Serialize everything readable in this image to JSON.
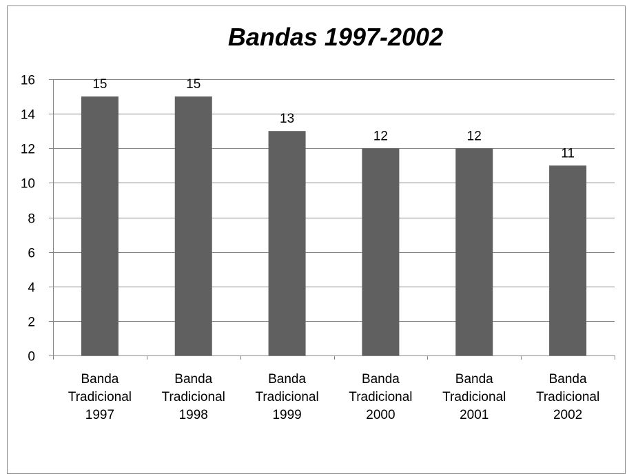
{
  "chart_data": {
    "type": "bar",
    "title": "Bandas 1997-2002",
    "categories": [
      [
        "Banda",
        "Tradicional",
        "1997"
      ],
      [
        "Banda",
        "Tradicional",
        "1998"
      ],
      [
        "Banda",
        "Tradicional",
        "1999"
      ],
      [
        "Banda",
        "Tradicional",
        "2000"
      ],
      [
        "Banda",
        "Tradicional",
        "2001"
      ],
      [
        "Banda",
        "Tradicional",
        "2002"
      ]
    ],
    "values": [
      15,
      15,
      13,
      12,
      12,
      11
    ],
    "data_labels": [
      "15",
      "15",
      "13",
      "12",
      "12",
      "11"
    ],
    "ylim": [
      0,
      16
    ],
    "yticks": [
      0,
      2,
      4,
      6,
      8,
      10,
      12,
      14,
      16
    ],
    "ytick_labels": [
      "0",
      "2",
      "4",
      "6",
      "8",
      "10",
      "12",
      "14",
      "16"
    ],
    "grid": true,
    "legend": "none",
    "colors": {
      "bar": "#606060",
      "grid": "#868686",
      "axis": "#868686",
      "border": "#888888"
    }
  }
}
